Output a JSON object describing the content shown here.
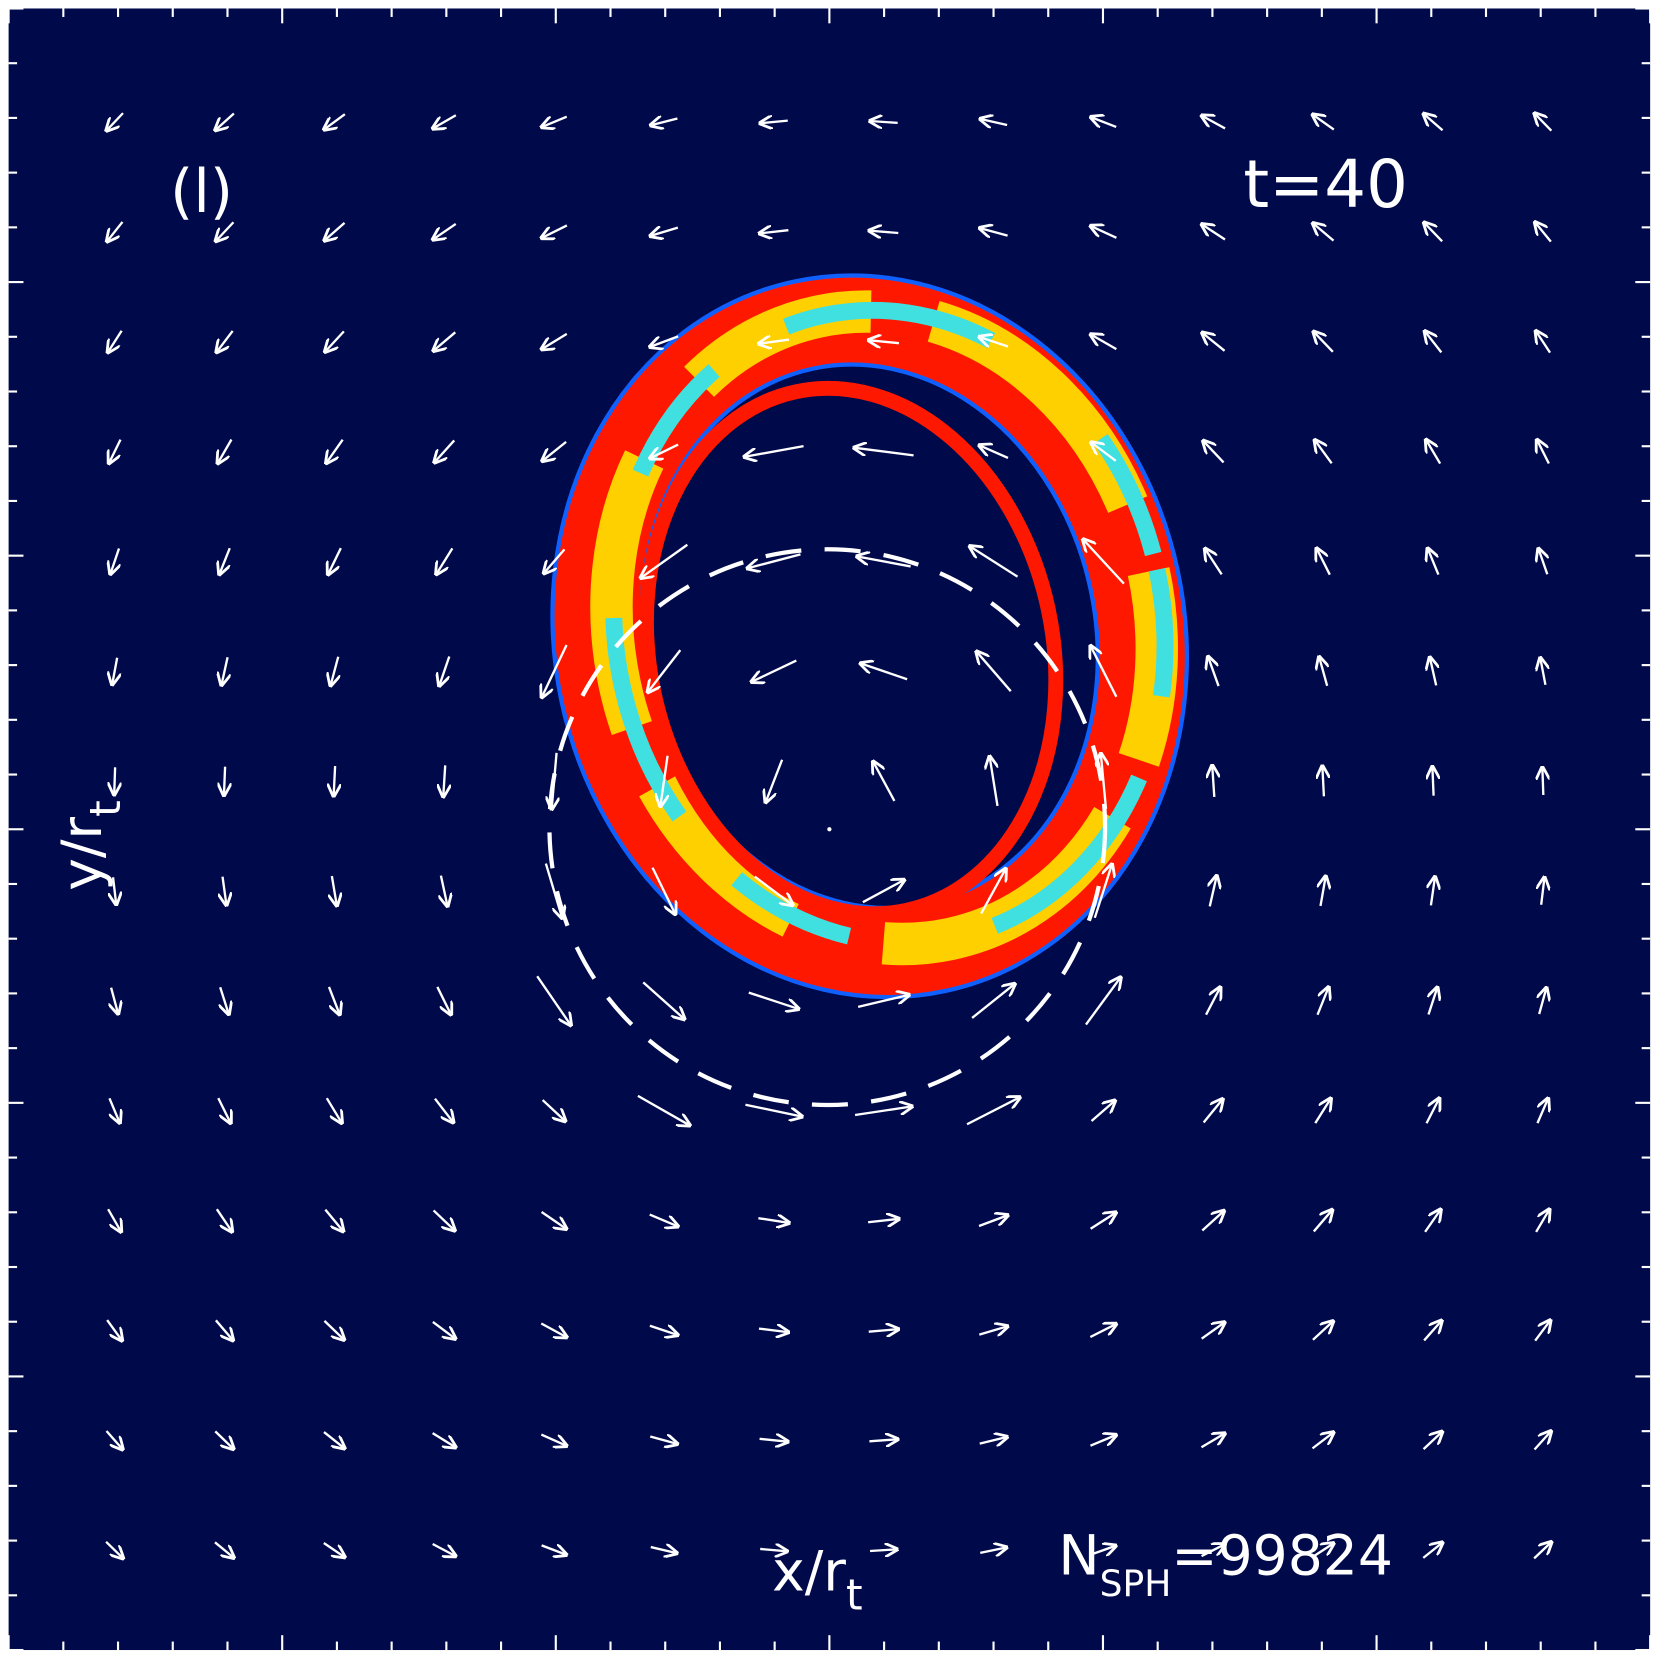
{
  "panel_label": "(l)",
  "time_label": "t=40",
  "x_label": {
    "main": "x/r",
    "sub": "t"
  },
  "y_label": {
    "main": "y/r",
    "sub": "t"
  },
  "particles_label": {
    "main": "N",
    "sub": "SPH",
    "rest": "=99824"
  }
}
